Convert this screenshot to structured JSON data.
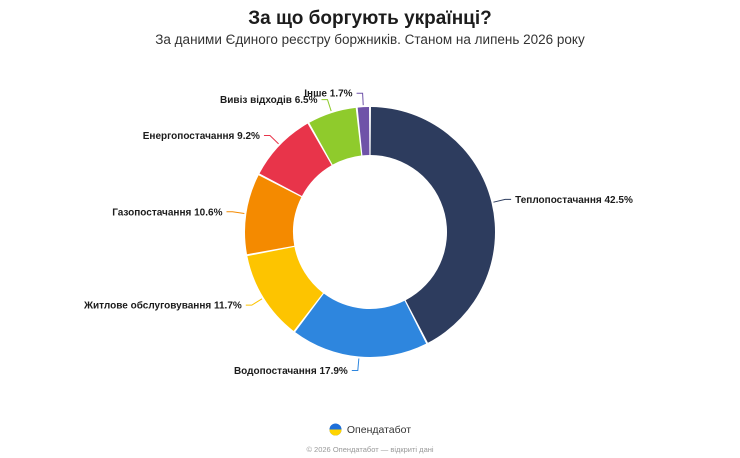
{
  "chart_data": {
    "type": "pie",
    "title": "За що боргують українці?",
    "subtitle": "За даними Єдиного реєстру боржників. Станом на липень 2026 року",
    "slices": [
      {
        "label": "Теплопостачання",
        "value": 42.5,
        "display": "42.5%",
        "color": "#2d3c5e"
      },
      {
        "label": "Водопостачання",
        "value": 17.9,
        "display": "17.9%",
        "color": "#2e86de"
      },
      {
        "label": "Житлове обслуговування",
        "value": 11.7,
        "display": "11.7%",
        "color": "#fdc400"
      },
      {
        "label": "Газопостачання",
        "value": 10.6,
        "display": "10.6%",
        "color": "#f48a00"
      },
      {
        "label": "Енергопостачання",
        "value": 9.2,
        "display": "9.2%",
        "color": "#e8344a"
      },
      {
        "label": "Вивіз відходів",
        "value": 6.5,
        "display": "6.5%",
        "color": "#8fcb2c"
      },
      {
        "label": "Інше",
        "value": 1.7,
        "display": "1.7%",
        "color": "#6f52a8"
      }
    ]
  },
  "footer": {
    "brand": "Опендатабот",
    "copyright": "© 2026 Опендатабот — відкриті дані"
  }
}
